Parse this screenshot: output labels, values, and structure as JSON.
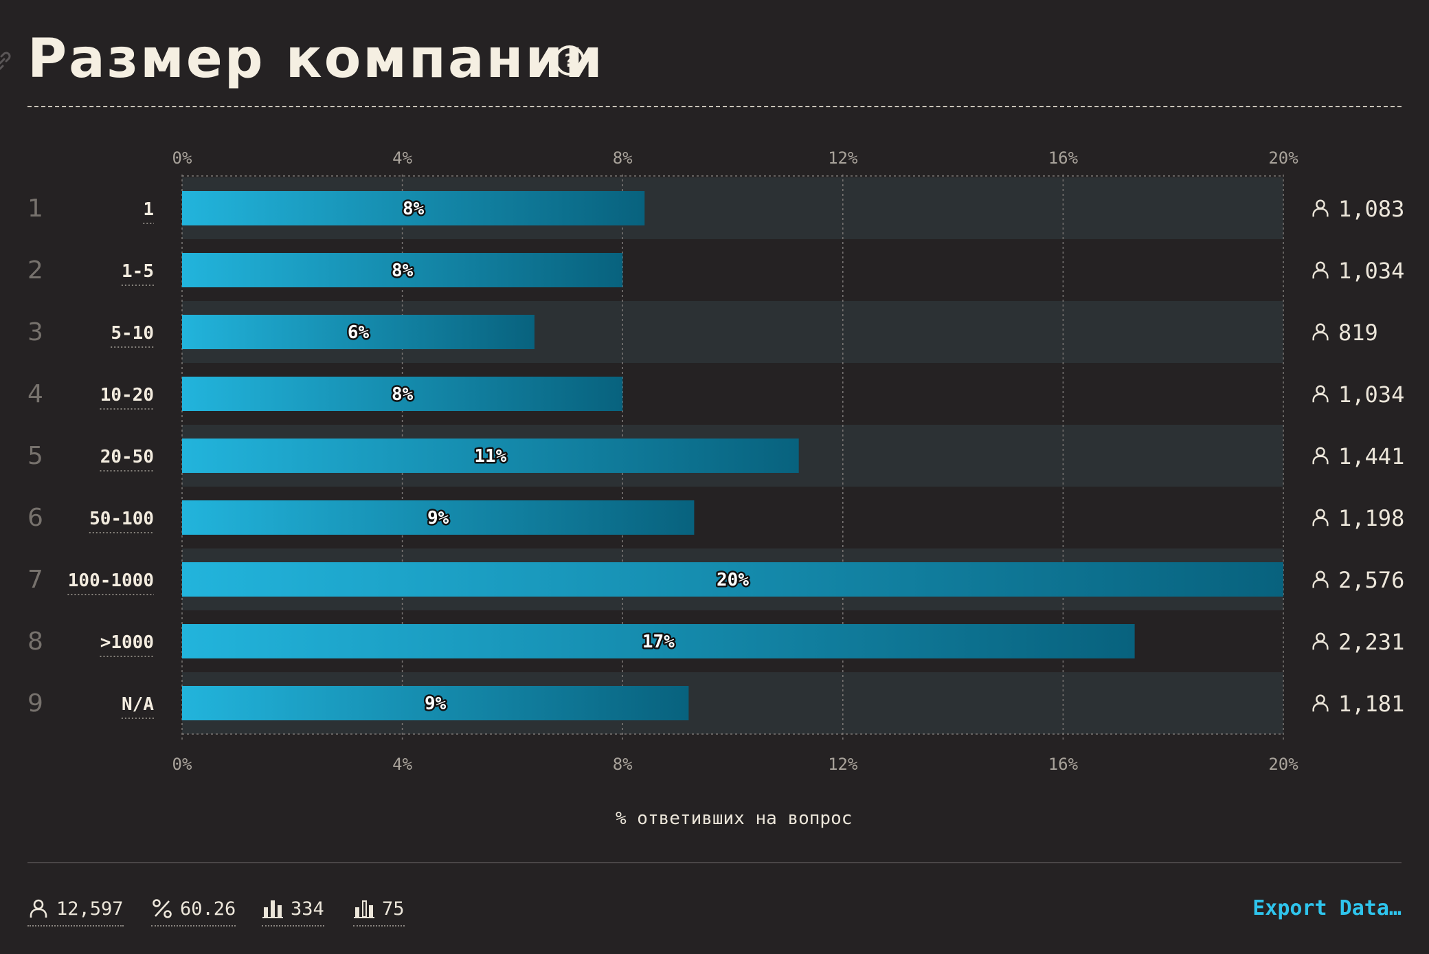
{
  "title": "Размер компании",
  "colors": {
    "background": "#252223",
    "bar_start": "#22b4dc",
    "bar_end": "#08627e",
    "row_band": "#2c3134",
    "accent": "#2fc4ec"
  },
  "chart_data": {
    "type": "bar",
    "orientation": "horizontal",
    "title": "Размер компании",
    "xlabel": "% ответивших на вопрос",
    "ylabel": "",
    "xlim": [
      0,
      20
    ],
    "xticks": [
      "0%",
      "4%",
      "8%",
      "12%",
      "16%",
      "20%"
    ],
    "grid": true,
    "ranks": [
      "1",
      "2",
      "3",
      "4",
      "5",
      "6",
      "7",
      "8",
      "9"
    ],
    "categories": [
      "1",
      "1-5",
      "5-10",
      "10-20",
      "20-50",
      "50-100",
      "100-1000",
      ">1000",
      "N/A"
    ],
    "values": [
      8.4,
      8.0,
      6.4,
      8.0,
      11.2,
      9.3,
      20.0,
      17.3,
      9.2
    ],
    "value_labels": [
      "8%",
      "8%",
      "6%",
      "8%",
      "11%",
      "9%",
      "20%",
      "17%",
      "9%"
    ],
    "counts": [
      "1,083",
      "1,034",
      "819",
      "1,034",
      "1,441",
      "1,198",
      "2,576",
      "2,231",
      "1,181"
    ]
  },
  "stats": {
    "respondents": "12,597",
    "percent": "60.26",
    "stat3": "334",
    "stat4": "75"
  },
  "icons": [
    "link-icon",
    "help-icon",
    "person-icon",
    "percent-icon",
    "bar-chart-icon",
    "bar-chart-outline-icon"
  ],
  "export_label": "Export Data…"
}
